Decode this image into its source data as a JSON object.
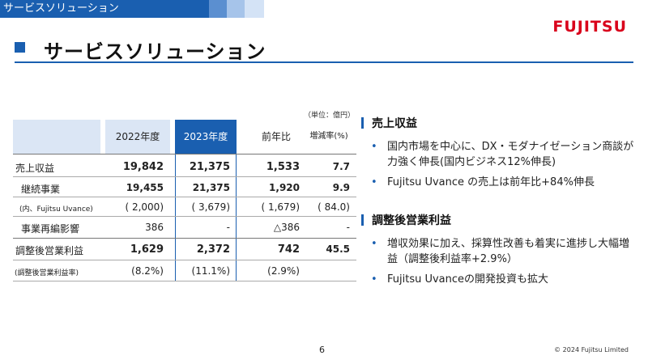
{
  "header": {
    "banner_text": "サービスソリューション",
    "title": "サービスソリューション",
    "logo": "FUJITSU"
  },
  "table": {
    "unit_note": "（単位：億円）",
    "columns": [
      "2022年度",
      "2023年度",
      "前年比",
      "増減率(%)"
    ],
    "rows": [
      {
        "label": "売上収益",
        "y2022": "19,842",
        "y2023": "21,375",
        "yoy": "1,533",
        "rate": "7.7"
      },
      {
        "label": "継続事業",
        "y2022": "19,455",
        "y2023": "21,375",
        "yoy": "1,920",
        "rate": "9.9"
      },
      {
        "label": "(内、Fujitsu Uvance)",
        "y2022": "( 2,000)",
        "y2023": "( 3,679)",
        "yoy": "( 1,679)",
        "rate": "( 84.0)"
      },
      {
        "label": "事業再編影響",
        "y2022": "386",
        "y2023": "-",
        "yoy": "△386",
        "rate": "-"
      },
      {
        "label": "調整後営業利益",
        "y2022": "1,629",
        "y2023": "2,372",
        "yoy": "742",
        "rate": "45.5"
      },
      {
        "label": "(調整後営業利益率)",
        "y2022": "(8.2%)",
        "y2023": "(11.1%)",
        "yoy": "(2.9%)",
        "rate": ""
      }
    ]
  },
  "panel": {
    "sections": [
      {
        "heading": "売上収益",
        "bullets": [
          "国内市場を中心に、DX・モダナイゼーション商談が力強く伸長(国内ビジネス12%伸長)",
          "Fujitsu Uvance の売上は前年比+84%伸長"
        ]
      },
      {
        "heading": "調整後営業利益",
        "bullets": [
          "増収効果に加え、採算性改善も着実に進捗し大幅増益（調整後利益率+2.9%）",
          "Fujitsu Uvanceの開発投資も拡大"
        ]
      }
    ]
  },
  "footer": {
    "page_number": "6",
    "copyright": "© 2024 Fujitsu Limited"
  },
  "colors": {
    "accent_blue": "#1a5fb0",
    "header_light_blue": "#dbe6f5",
    "logo_red": "#d9001b"
  }
}
